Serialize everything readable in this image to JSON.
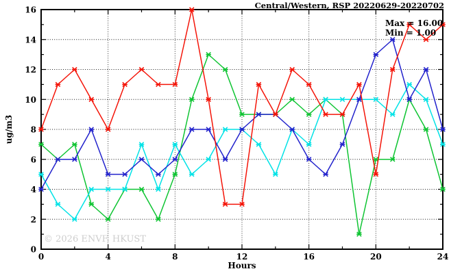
{
  "title": "Central/Western, RSP 20220629-20220702",
  "annotation": {
    "max_label": "Max = 16.00",
    "min_label": "Min = 1.00"
  },
  "watermark": "© 2026 ENVF, HKUST",
  "chart_data": {
    "type": "line",
    "title": "Central/Western, RSP 20220629-20220702",
    "xlabel": "Hours",
    "ylabel": "ug/m3",
    "xlim": [
      0,
      24
    ],
    "ylim": [
      0,
      16
    ],
    "x_ticks": [
      0,
      4,
      8,
      12,
      16,
      20,
      24
    ],
    "y_ticks": [
      0,
      2,
      4,
      6,
      8,
      10,
      12,
      14,
      16
    ],
    "x_minor_step": 2,
    "y_minor_step": 1,
    "grid": true,
    "legend": "none",
    "x": [
      0,
      1,
      2,
      3,
      4,
      5,
      6,
      7,
      8,
      9,
      10,
      11,
      12,
      13,
      14,
      15,
      16,
      17,
      18,
      19,
      20,
      21,
      22,
      23,
      24
    ],
    "series": [
      {
        "name": "series-green",
        "color": "#0ec432",
        "values": [
          7,
          6,
          7,
          3,
          2,
          4,
          4,
          2,
          5,
          10,
          13,
          12,
          9,
          9,
          9,
          10,
          9,
          10,
          9,
          1,
          6,
          6,
          10,
          8,
          4
        ]
      },
      {
        "name": "series-cyan",
        "color": "#00e2e6",
        "values": [
          5,
          3,
          2,
          4,
          4,
          4,
          7,
          4,
          7,
          5,
          6,
          8,
          8,
          7,
          5,
          8,
          7,
          10,
          10,
          10,
          10,
          9,
          11,
          10,
          7
        ]
      },
      {
        "name": "series-blue",
        "color": "#2222cc",
        "values": [
          4,
          6,
          6,
          8,
          5,
          5,
          6,
          5,
          6,
          8,
          8,
          6,
          8,
          9,
          9,
          8,
          6,
          5,
          7,
          10,
          13,
          14,
          10,
          12,
          8
        ]
      },
      {
        "name": "series-red",
        "color": "#f41408",
        "values": [
          8,
          11,
          12,
          10,
          8,
          11,
          12,
          11,
          11,
          16,
          10,
          3,
          3,
          11,
          9,
          12,
          11,
          9,
          9,
          11,
          5,
          12,
          15,
          14,
          15
        ]
      }
    ],
    "stats": {
      "max": 16.0,
      "min": 1.0
    }
  }
}
